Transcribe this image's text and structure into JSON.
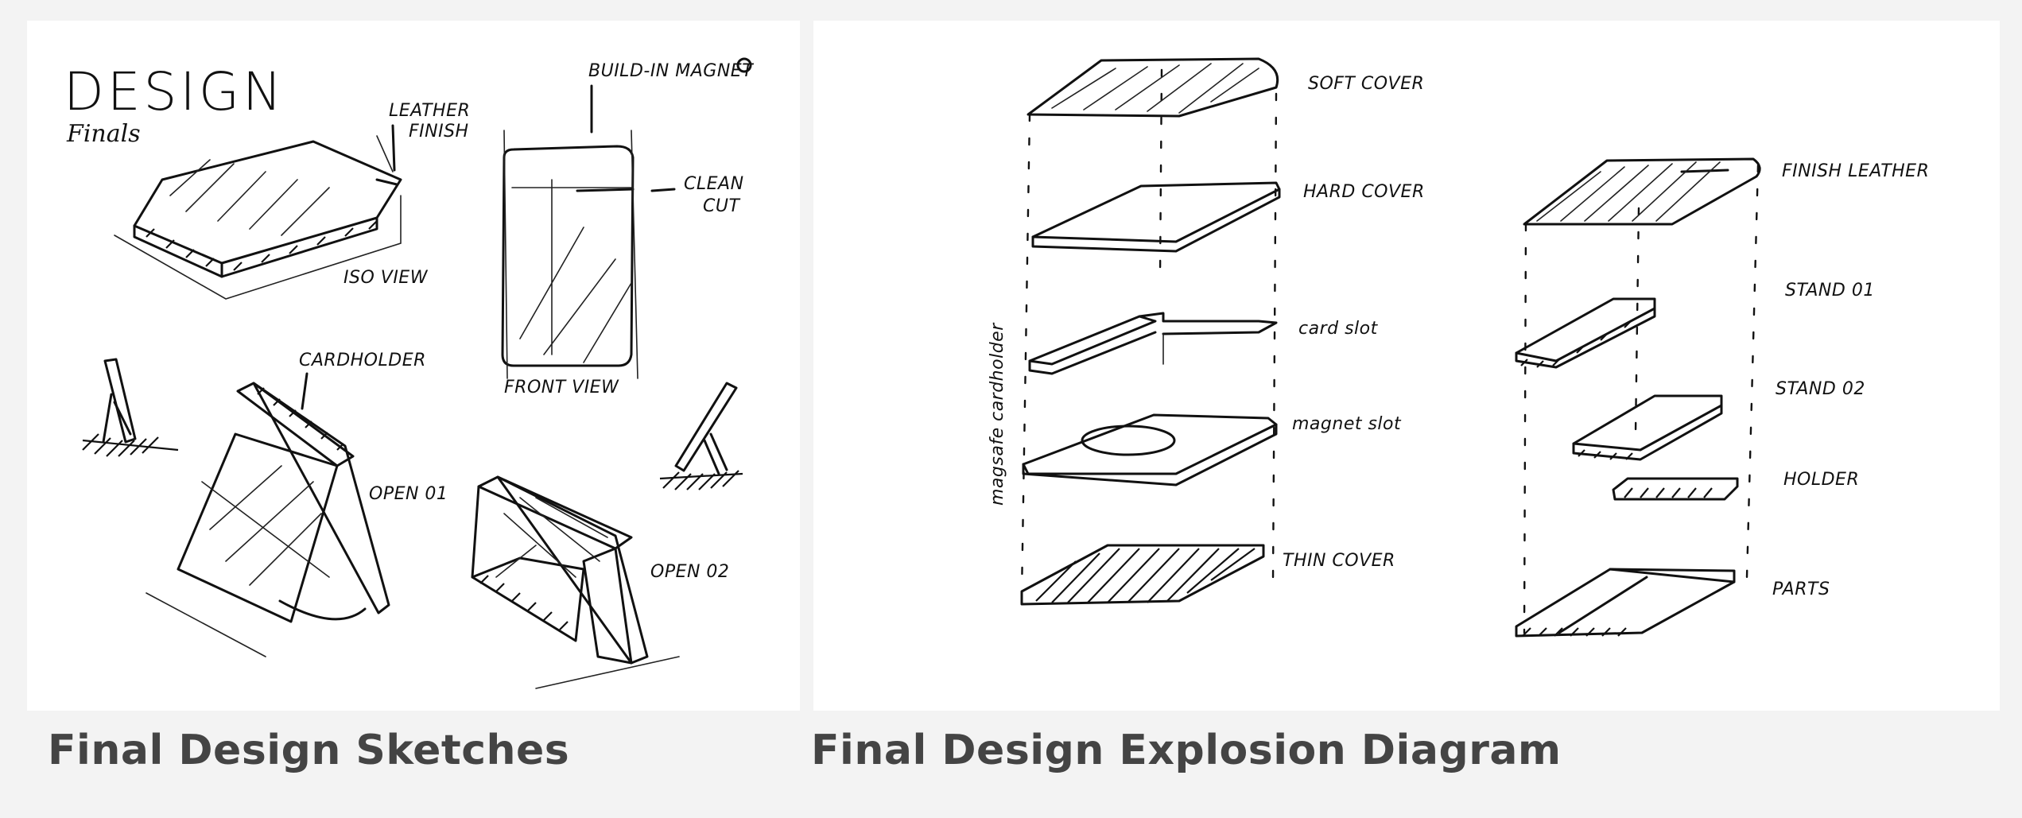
{
  "left_panel": {
    "caption": "Final Design Sketches",
    "labels": {
      "design": "DESIGN",
      "finals": "Finals",
      "leather_finish_1": "LEATHER",
      "leather_finish_2": "FINISH",
      "build_in_magnet": "BUILD-IN MAGNET",
      "clean_cut_1": "CLEAN",
      "clean_cut_2": "CUT",
      "iso_view": "ISO VIEW",
      "front_view": "FRONT VIEW",
      "cardholder": "CARDHOLDER",
      "open_01": "OPEN 01",
      "open_02": "OPEN 02"
    }
  },
  "right_panel": {
    "caption": "Final Design Explosion Diagram",
    "left_stack": {
      "side_label": "magsafe cardholder",
      "layers": [
        "SOFT COVER",
        "HARD COVER",
        "card slot",
        "magnet slot",
        "THIN COVER"
      ]
    },
    "right_stack": {
      "layers": [
        "FINISH LEATHER",
        "STAND 01",
        "STAND 02",
        "HOLDER",
        "PARTS"
      ]
    }
  }
}
